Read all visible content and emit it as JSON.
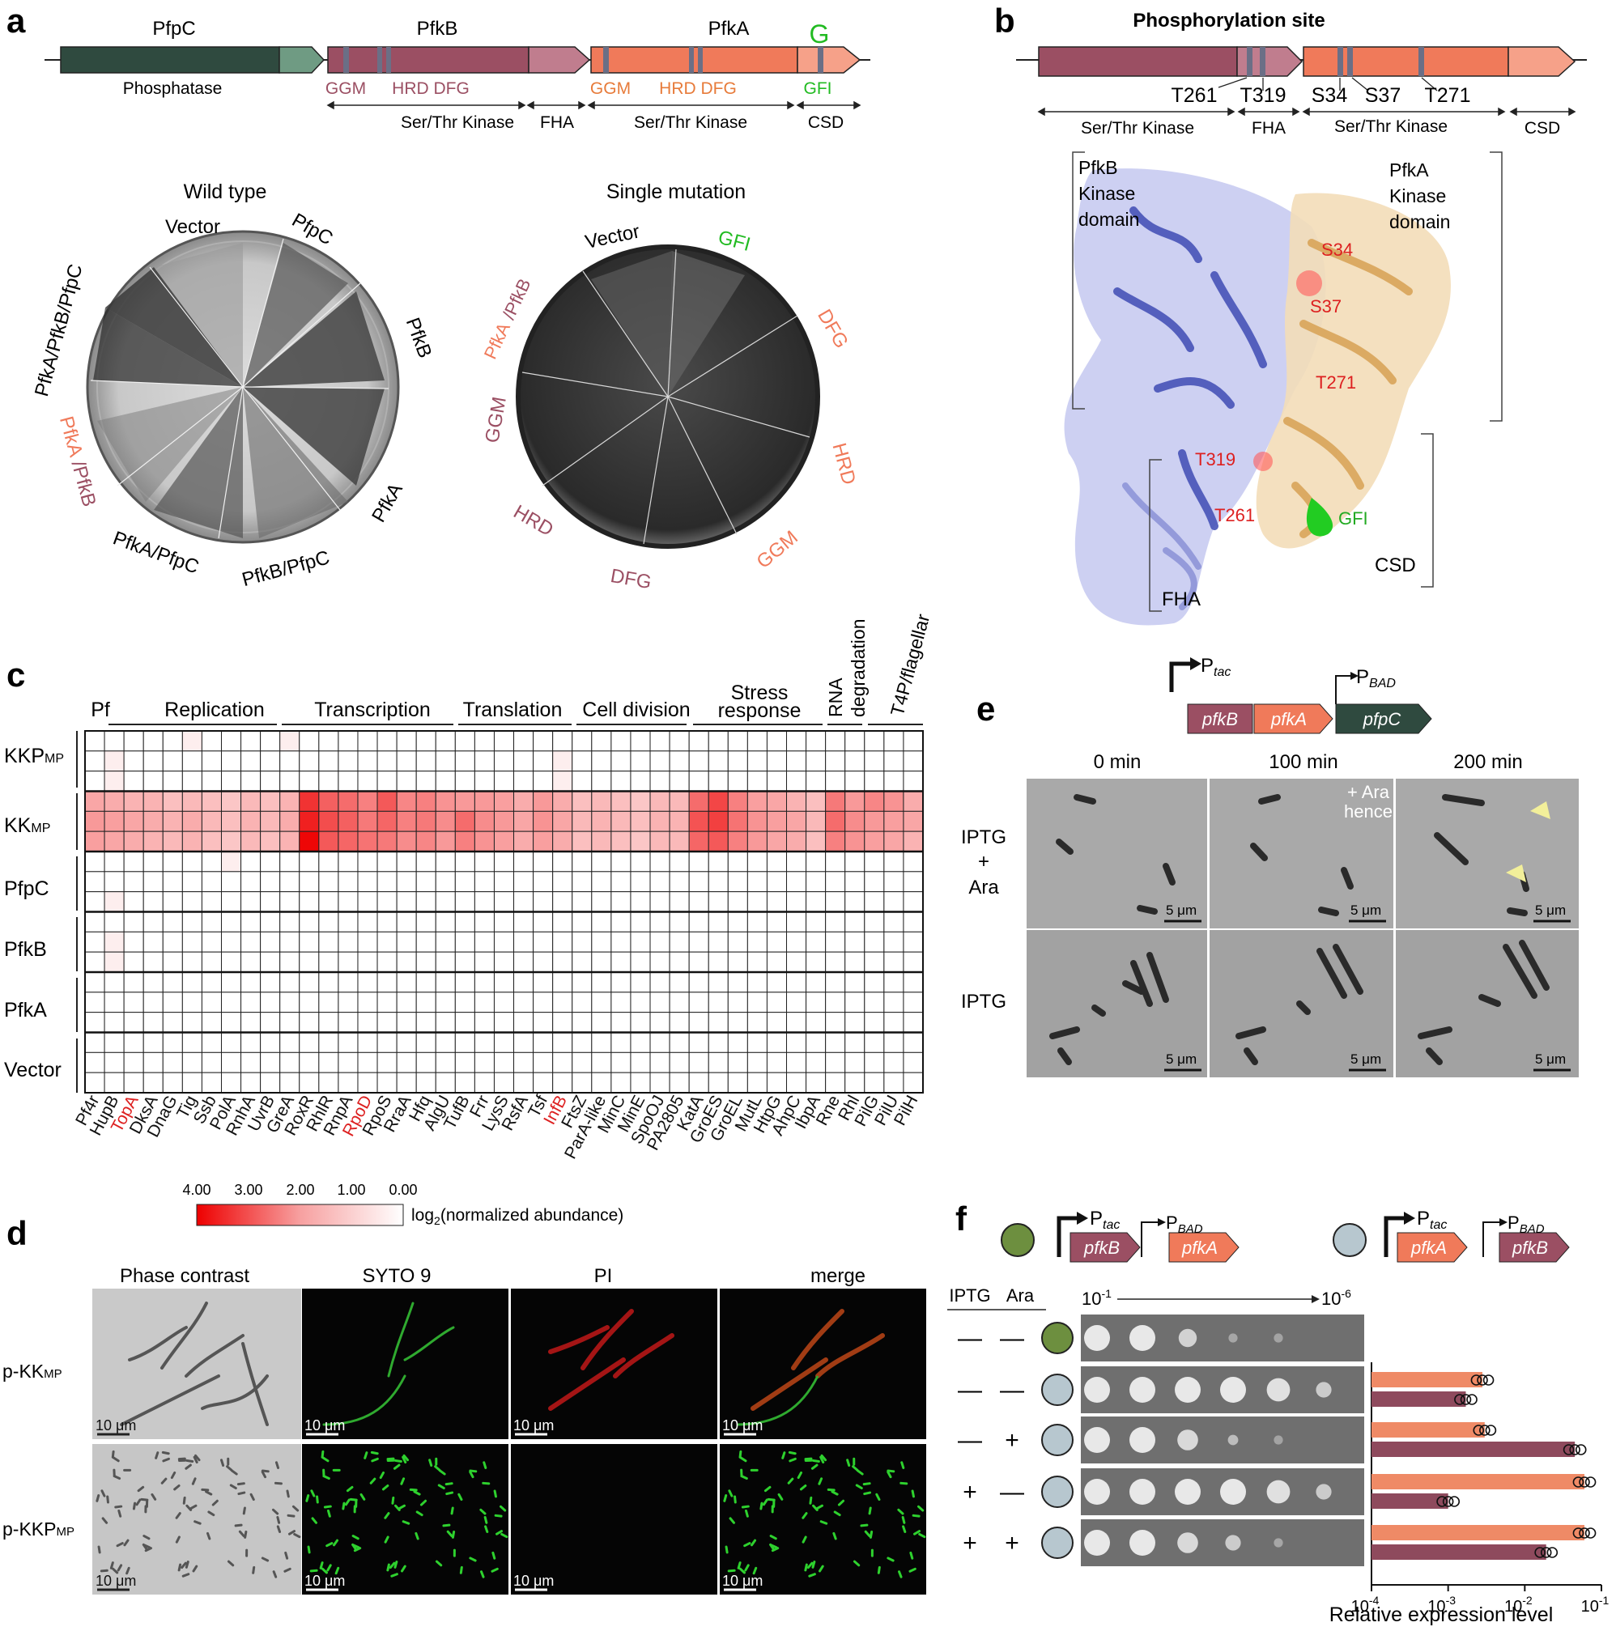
{
  "panels": {
    "a": "a",
    "b": "b",
    "c": "c",
    "d": "d",
    "e": "e",
    "f": "f"
  },
  "colors": {
    "pfpc_dark": "#2f4a3f",
    "pfpc_light": "#6f9b83",
    "pfkb": "#9b4f63",
    "pfkb_light": "#c07d8e",
    "pfka": "#f07a5a",
    "pfka_light": "#f6a189",
    "motif": "#6b6f86",
    "green": "#22bb22",
    "red": "#dd2020",
    "fha_blue": "#8e95d8",
    "kinase_blue": "#4753b8",
    "orange_dom": "#e8b97a",
    "dot_green": "#6d8f3f",
    "dot_grey": "#b7c7cf"
  },
  "panel_a": {
    "genes": [
      "PfpC",
      "PfkB",
      "PfkA"
    ],
    "g_label": "G",
    "phosphatase": "Phosphatase",
    "motifs_b": [
      "GGM",
      "HRD DFG"
    ],
    "motifs_a": [
      "GGM",
      "HRD DFG"
    ],
    "gfi": "GFI",
    "domains": [
      "Ser/Thr Kinase",
      "FHA",
      "Ser/Thr Kinase",
      "CSD"
    ],
    "wt_title": "Wild type",
    "wt_labels": [
      "Vector",
      "PfpC",
      "PfkB",
      "PfkA",
      "PfkB/PfpC",
      "PfkA/PfpC",
      "PfkA/PfkB/PfpC"
    ],
    "wt_pfka": "PfkA",
    "wt_pfkb": "/PfkB",
    "sm_title": "Single mutation",
    "sm_labels": [
      "Vector",
      "GFI",
      "DFG",
      "HRD",
      "GGM",
      "DFG",
      "HRD",
      "GGM"
    ],
    "sm_pfka": "PfkA",
    "sm_pfkb": "/PfkB"
  },
  "panel_b": {
    "title": "Phosphorylation site",
    "sites": [
      "T261",
      "T319",
      "S34",
      "S37",
      "T271"
    ],
    "domains": [
      "Ser/Thr Kinase",
      "FHA",
      "Ser/Thr Kinase",
      "CSD"
    ],
    "pfkb_domain": [
      "PfkB",
      "Kinase",
      "domain"
    ],
    "pfka_domain": [
      "PfkA",
      "Kinase",
      "domain"
    ],
    "struct_sites": [
      "S34",
      "S37",
      "T271",
      "T319",
      "T261"
    ],
    "gfi": "GFI",
    "fha": "FHA",
    "csd": "CSD"
  },
  "panel_c": {
    "groups": [
      "Pf",
      "Replication",
      "Transcription",
      "Translation",
      "Cell division",
      "Stress",
      "response",
      "RNA",
      "degradation",
      "T4P/flagellar"
    ],
    "rows": [
      "KKP",
      "KK",
      "PfpC",
      "PfkB",
      "PfkA",
      "Vector"
    ],
    "row_sub": "MP",
    "columns": [
      "Pf4r",
      "HupB",
      "TopA",
      "DksA",
      "DnaG",
      "Tig",
      "Ssb",
      "PolA",
      "RnhA",
      "UvrB",
      "GreA",
      "RoxR",
      "RhlR",
      "RnpA",
      "RpoD",
      "RpoS",
      "RraA",
      "Hfq",
      "AlgU",
      "TufB",
      "Frr",
      "LysS",
      "RsfA",
      "Tsf",
      "InfB",
      "FtsZ",
      "ParA-like",
      "MinC",
      "MinE",
      "SpoOJ",
      "PA2805",
      "KatA",
      "GroES",
      "GroEL",
      "MutL",
      "HtpG",
      "AhpC",
      "IbpA",
      "Rne",
      "Rhl",
      "PilG",
      "PilU",
      "PilH"
    ],
    "red_columns": [
      "TopA",
      "RpoD",
      "InfB"
    ],
    "kk_values": [
      [
        1.4,
        1.3,
        1.2,
        1.2,
        1.0,
        1.1,
        1.0,
        0.9,
        1.1,
        1.0,
        1.2,
        3.2,
        2.5,
        2.3,
        2.0,
        2.6,
        1.9,
        2.0,
        1.7,
        1.6,
        1.6,
        1.5,
        1.3,
        1.6,
        1.3,
        1.0,
        1.1,
        1.0,
        0.9,
        1.1,
        1.1,
        2.3,
        2.9,
        2.0,
        1.5,
        1.4,
        1.2,
        1.0,
        2.1,
        1.6,
        1.9,
        1.7,
        1.3
      ],
      [
        1.6,
        1.5,
        1.4,
        1.3,
        1.2,
        1.3,
        1.1,
        1.0,
        1.2,
        1.1,
        1.3,
        3.5,
        2.8,
        2.5,
        2.1,
        2.4,
        2.0,
        2.1,
        1.8,
        2.3,
        1.8,
        1.6,
        1.4,
        1.7,
        1.4,
        1.1,
        1.2,
        1.1,
        1.0,
        1.2,
        1.2,
        2.7,
        3.0,
        2.2,
        1.7,
        1.5,
        1.4,
        1.1,
        2.3,
        1.8,
        1.6,
        1.5,
        1.4
      ],
      [
        1.5,
        1.4,
        1.3,
        1.2,
        1.1,
        1.2,
        1.0,
        0.9,
        1.1,
        1.0,
        1.2,
        3.9,
        2.6,
        2.4,
        2.2,
        2.1,
        1.8,
        1.9,
        1.6,
        2.0,
        1.7,
        1.5,
        1.3,
        1.5,
        1.3,
        1.0,
        1.1,
        1.0,
        0.9,
        1.1,
        1.1,
        2.4,
        2.6,
        2.0,
        1.6,
        1.4,
        1.3,
        1.0,
        2.0,
        1.7,
        1.5,
        1.4,
        1.2
      ]
    ],
    "faint_cells": [
      [
        0,
        5
      ],
      [
        1,
        1
      ],
      [
        2,
        1
      ],
      [
        0,
        10
      ],
      [
        1,
        24
      ],
      [
        2,
        24
      ],
      [
        6,
        7
      ],
      [
        8,
        1
      ],
      [
        10,
        1
      ],
      [
        11,
        1
      ]
    ],
    "legend_ticks": [
      "4.00",
      "3.00",
      "2.00",
      "1.00",
      "0.00"
    ],
    "legend_label": "log",
    "legend_label_sub": "2",
    "legend_label_rest": "(normalized abundance)"
  },
  "panel_d": {
    "columns": [
      "Phase contrast",
      "SYTO 9",
      "PI",
      "merge"
    ],
    "rows": [
      "p-KK",
      "p-KKP"
    ],
    "row_sub": "MP",
    "scale": "10 μm"
  },
  "panel_e": {
    "ptac": "P",
    "ptac_sub": "tac",
    "pbad": "P",
    "pbad_sub": "BAD",
    "genes": [
      "pfkB",
      "pfkA",
      "pfpC"
    ],
    "times": [
      "0 min",
      "100 min",
      "200 min"
    ],
    "ara_note": [
      "+ Ara",
      "hence"
    ],
    "rows": [
      "IPTG",
      "+",
      "Ara",
      "IPTG"
    ],
    "scale": "5 μm"
  },
  "panel_f": {
    "construct1": [
      "pfkB",
      "pfkA"
    ],
    "construct2": [
      "pfkA",
      "pfkB"
    ],
    "ptac": "P",
    "ptac_sub": "tac",
    "pbad": "P",
    "pbad_sub": "BAD",
    "header": [
      "IPTG",
      "Ara"
    ],
    "dilution_start": "10",
    "dilution_start_exp": "-1",
    "dilution_end": "10",
    "dilution_end_exp": "-6",
    "conditions": [
      {
        "iptg": "—",
        "ara": "—",
        "strain": "green"
      },
      {
        "iptg": "—",
        "ara": "—",
        "strain": "grey"
      },
      {
        "iptg": "—",
        "ara": "+",
        "strain": "grey"
      },
      {
        "iptg": "+",
        "ara": "—",
        "strain": "grey"
      },
      {
        "iptg": "+",
        "ara": "+",
        "strain": "grey"
      }
    ],
    "expression": [
      {
        "pfka": 0.0028,
        "pfkb": 0.0017
      },
      {
        "pfka": 0.003,
        "pfkb": 0.045
      },
      {
        "pfka": 0.06,
        "pfkb": 0.001
      },
      {
        "pfka": 0.06,
        "pfkb": 0.019
      }
    ],
    "axis_ticks": [
      {
        "base": "10",
        "exp": "-4"
      },
      {
        "base": "10",
        "exp": "-3"
      },
      {
        "base": "10",
        "exp": "-2"
      },
      {
        "base": "10",
        "exp": "-1"
      }
    ],
    "xlabel": "Relative expression level"
  }
}
